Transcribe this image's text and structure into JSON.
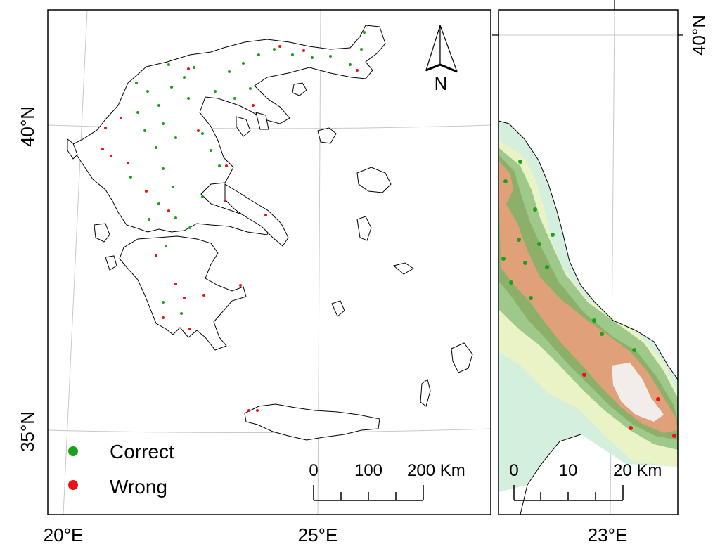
{
  "main_map": {
    "lat_labels": [
      "40°N",
      "35°N"
    ],
    "lon_labels": [
      "20°E",
      "25°E"
    ],
    "north_arrow_label": "N",
    "legend": [
      {
        "label": "Correct",
        "color": "#1aa31a"
      },
      {
        "label": "Wrong",
        "color": "#ee1111"
      }
    ],
    "scale_bar": {
      "ticks": [
        "0",
        "100",
        "200 Km"
      ]
    }
  },
  "inset_map": {
    "lat_label": "40°N",
    "lon_label": "23°E",
    "scale_bar": {
      "ticks": [
        "0",
        "10",
        "20 Km"
      ]
    }
  },
  "colors": {
    "correct": "#1aa31a",
    "wrong": "#ee1111",
    "graticule": "#c8c8c8",
    "coast": "#000000"
  }
}
